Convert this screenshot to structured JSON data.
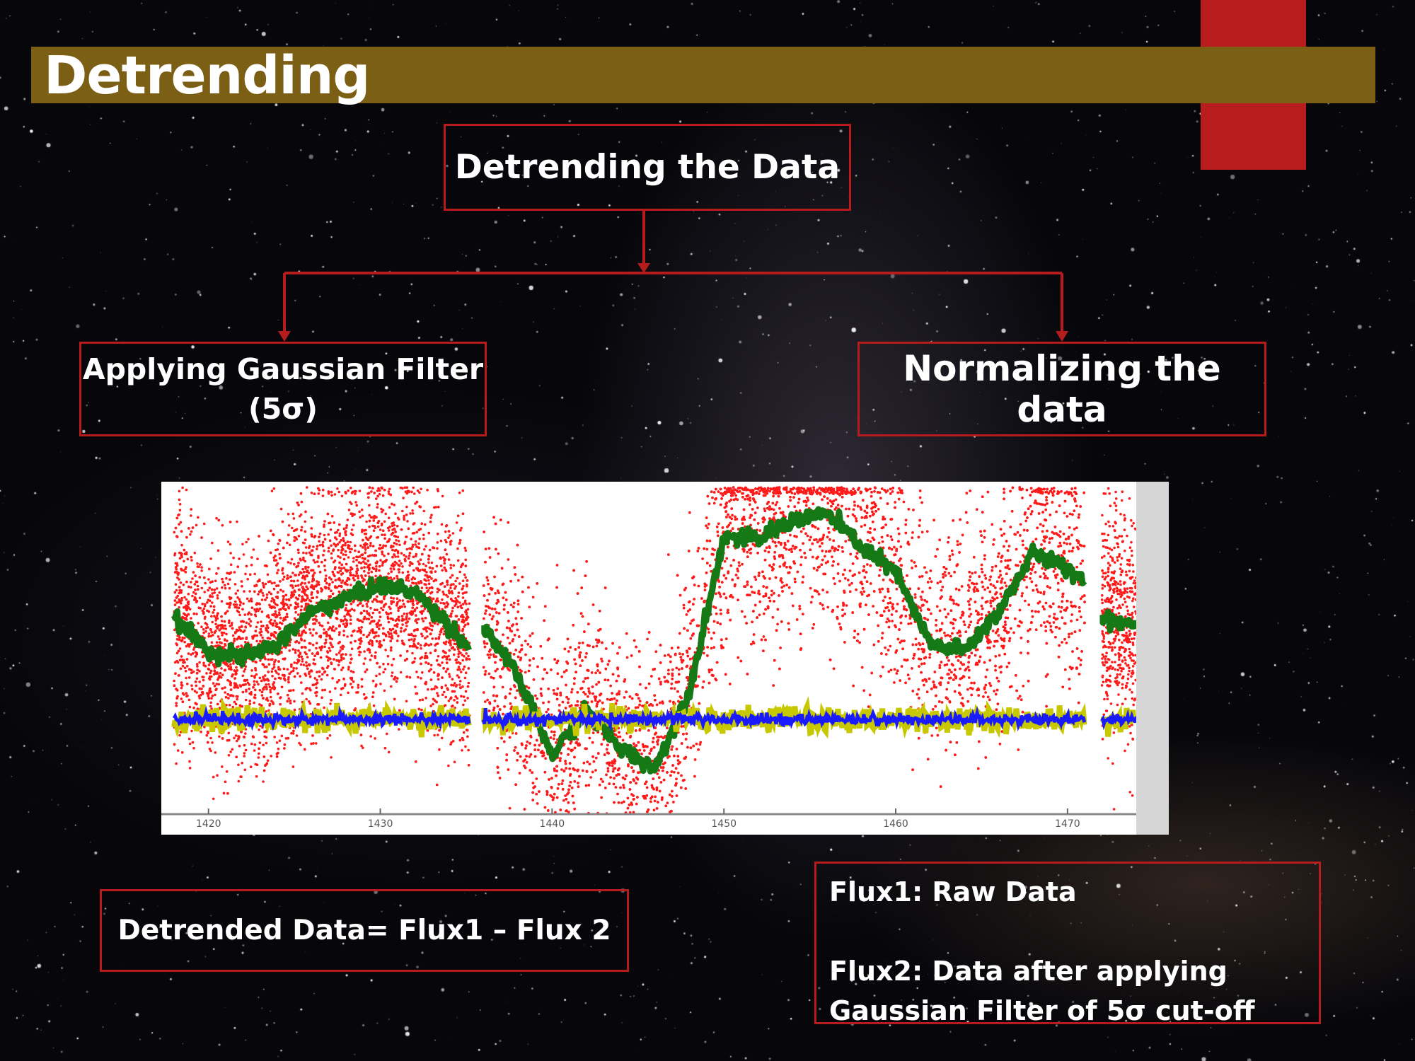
{
  "slide": {
    "title": "Detrending"
  },
  "boxes": {
    "top": "Detrending the Data",
    "left_line1": "Applying Gaussian Filter",
    "left_line2": "(5σ)",
    "right": "Normalizing the data",
    "detrended": "Detrended Data= Flux1 – Flux 2",
    "legend_flux1": "Flux1: Raw Data",
    "legend_flux2_line1": "Flux2: Data after applying",
    "legend_flux2_line2": "Gaussian Filter of 5σ cut-off"
  },
  "colors": {
    "title_bar": "#7a5f14",
    "accent_red": "#b81c1c",
    "box_border": "#b71c1c",
    "raw": "#ff1a1a",
    "trend": "#157a15",
    "normalized": "#1a1aff",
    "normalized_edge": "#c8c800"
  },
  "chart_data": {
    "type": "scatter",
    "xlim": [
      1417.5,
      1474
    ],
    "ylim": [
      0,
      1
    ],
    "ylabel": "",
    "xlabel": "",
    "xticks": [
      1420,
      1430,
      1440,
      1450,
      1460,
      1470
    ],
    "segments": [
      [
        1418,
        1435.2
      ],
      [
        1436,
        1471
      ],
      [
        1472,
        1474
      ]
    ],
    "series": [
      {
        "kind": "scatter",
        "x": [
          1418,
          1420,
          1422,
          1424,
          1426,
          1428,
          1430,
          1432,
          1434,
          1435.2,
          1436,
          1438,
          1440,
          1442,
          1444,
          1446,
          1448,
          1450,
          1452,
          1454,
          1456,
          1458,
          1460,
          1462,
          1464,
          1466,
          1468,
          1470,
          1471,
          1472,
          1474
        ],
        "y": [
          0.6,
          0.5,
          0.48,
          0.52,
          0.62,
          0.66,
          0.7,
          0.68,
          0.58,
          0.5,
          0.58,
          0.42,
          0.18,
          0.32,
          0.2,
          0.14,
          0.38,
          0.85,
          0.84,
          0.9,
          0.92,
          0.82,
          0.74,
          0.52,
          0.5,
          0.62,
          0.8,
          0.75,
          0.72,
          0.6,
          0.58
        ]
      },
      {
        "kind": "line",
        "x": [
          1418,
          1420,
          1422,
          1424,
          1426,
          1428,
          1430,
          1432,
          1434,
          1435.2,
          1436,
          1438,
          1440,
          1442,
          1444,
          1446,
          1448,
          1450,
          1452,
          1454,
          1456,
          1458,
          1460,
          1462,
          1464,
          1466,
          1468,
          1470,
          1471,
          1472,
          1474
        ],
        "y": [
          0.6,
          0.5,
          0.48,
          0.52,
          0.62,
          0.66,
          0.7,
          0.68,
          0.58,
          0.5,
          0.58,
          0.42,
          0.18,
          0.32,
          0.2,
          0.14,
          0.38,
          0.85,
          0.84,
          0.9,
          0.92,
          0.82,
          0.74,
          0.52,
          0.5,
          0.62,
          0.8,
          0.75,
          0.72,
          0.6,
          0.58
        ]
      },
      {
        "kind": "line",
        "x": [
          1418,
          1471
        ],
        "y": [
          0.29,
          0.29
        ]
      }
    ]
  }
}
